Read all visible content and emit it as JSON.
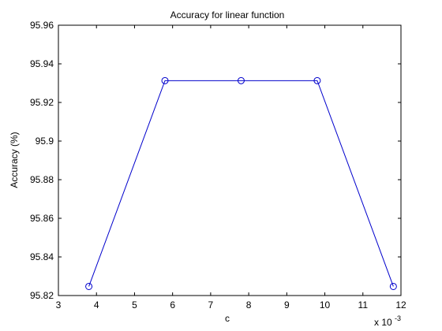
{
  "chart_data": {
    "type": "line",
    "title": "Accuracy for linear function",
    "xlabel": "c",
    "ylabel": "Accuracy (%)",
    "x_multiplier_label": "x 10",
    "x_multiplier_exponent": "-3",
    "xlim": [
      3,
      12
    ],
    "ylim": [
      95.82,
      95.96
    ],
    "xticks": [
      3,
      4,
      5,
      6,
      7,
      8,
      9,
      10,
      11,
      12
    ],
    "xtick_labels": [
      "3",
      "4",
      "5",
      "6",
      "7",
      "8",
      "9",
      "10",
      "11",
      "12"
    ],
    "yticks": [
      95.82,
      95.84,
      95.86,
      95.88,
      95.9,
      95.92,
      95.94,
      95.96
    ],
    "ytick_labels": [
      "95.82",
      "95.84",
      "95.86",
      "95.88",
      "95.9",
      "95.92",
      "95.94",
      "95.96"
    ],
    "grid": false,
    "series": [
      {
        "x": [
          3.8,
          5.8,
          7.8,
          9.8,
          11.8
        ],
        "y": [
          95.8247,
          95.9313,
          95.9313,
          95.9313,
          95.8247
        ],
        "color": "#0000cc",
        "marker": "circle"
      }
    ]
  }
}
